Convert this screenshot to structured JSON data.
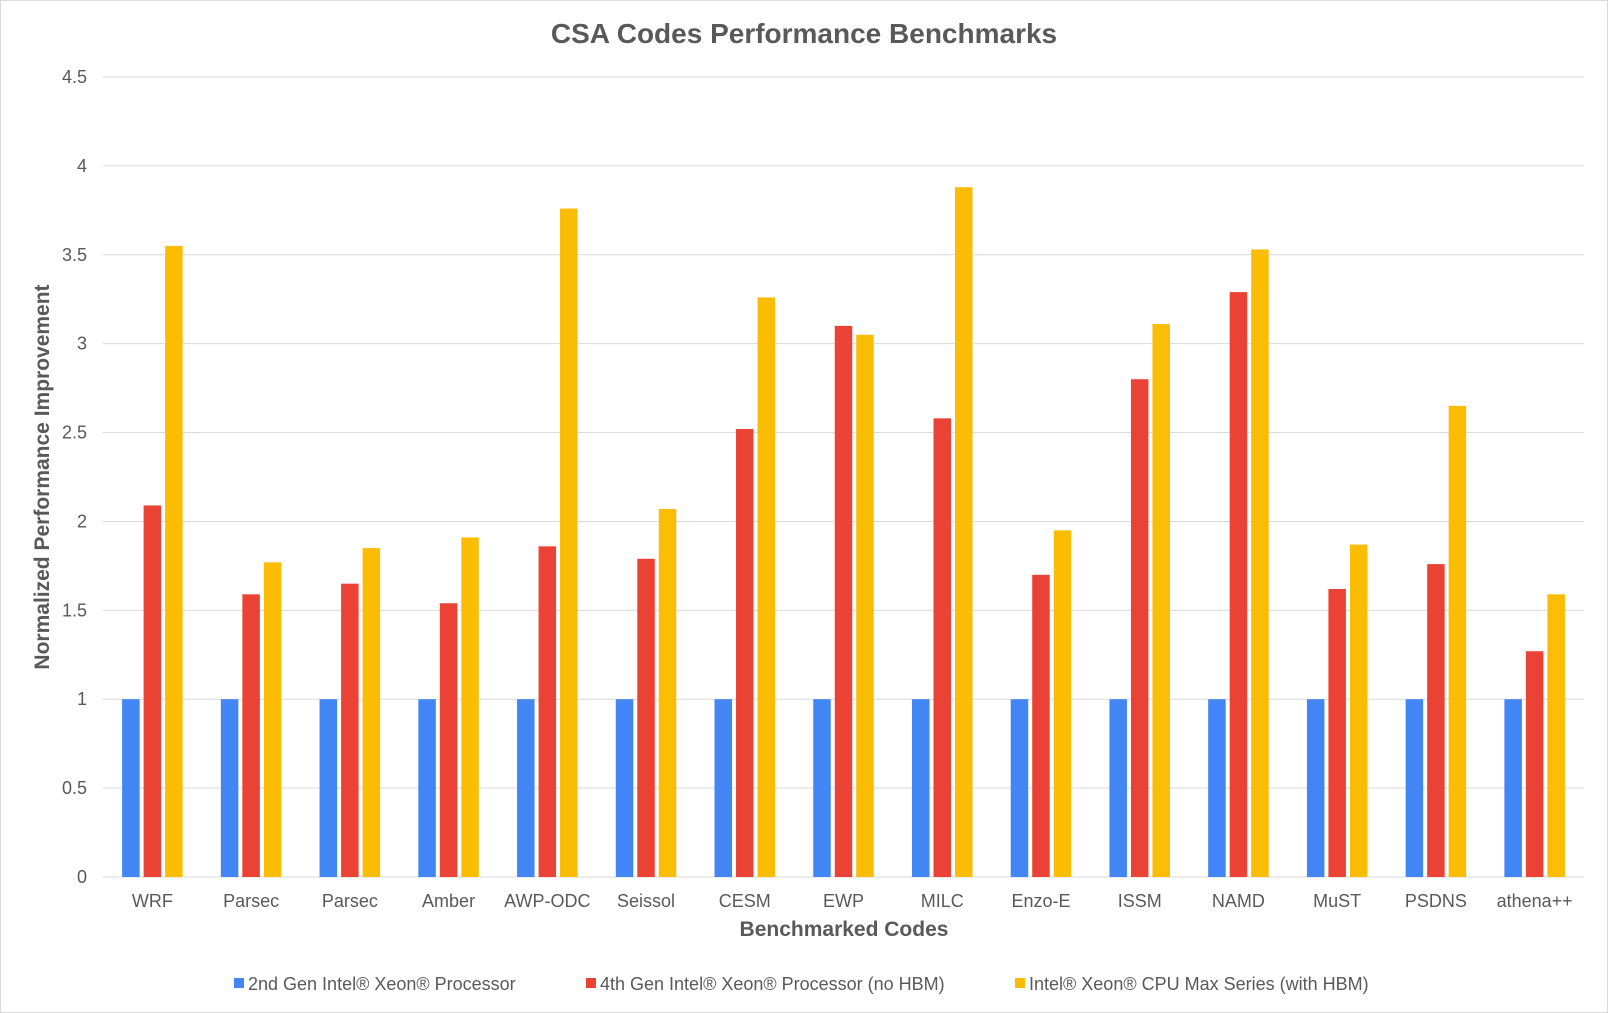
{
  "chart_data": {
    "type": "bar",
    "title": "CSA Codes Performance Benchmarks",
    "xlabel": "Benchmarked Codes",
    "ylabel": "Normalized Performance Improvement",
    "ylim": [
      0,
      4.5
    ],
    "yticks": [
      0,
      0.5,
      1,
      1.5,
      2,
      2.5,
      3,
      3.5,
      4,
      4.5
    ],
    "ytick_labels": [
      "0",
      "0.5",
      "1",
      "1.5",
      "2",
      "2.5",
      "3",
      "3.5",
      "4",
      "4.5"
    ],
    "grid": true,
    "legend_position": "bottom",
    "categories": [
      "WRF",
      "Parsec",
      "Parsec",
      "Amber",
      "AWP-ODC",
      "Seissol",
      "CESM",
      "EWP",
      "MILC",
      "Enzo-E",
      "ISSM",
      "NAMD",
      "MuST",
      "PSDNS",
      "athena++"
    ],
    "series": [
      {
        "name": "2nd Gen Intel® Xeon® Processor",
        "color": "#4285f4",
        "values": [
          1,
          1,
          1,
          1,
          1,
          1,
          1,
          1,
          1,
          1,
          1,
          1,
          1,
          1,
          1
        ]
      },
      {
        "name": "4th Gen Intel® Xeon® Processor (no HBM)",
        "color": "#ea4335",
        "values": [
          2.09,
          1.59,
          1.65,
          1.54,
          1.86,
          1.79,
          2.52,
          3.1,
          2.58,
          1.7,
          2.8,
          3.29,
          1.62,
          1.76,
          1.27
        ]
      },
      {
        "name": "Intel® Xeon® CPU Max Series (with HBM)",
        "color": "#fbbc04",
        "values": [
          3.55,
          1.77,
          1.85,
          1.91,
          3.76,
          2.07,
          3.26,
          3.05,
          3.88,
          1.95,
          3.11,
          3.53,
          1.87,
          2.65,
          1.59
        ]
      }
    ]
  }
}
